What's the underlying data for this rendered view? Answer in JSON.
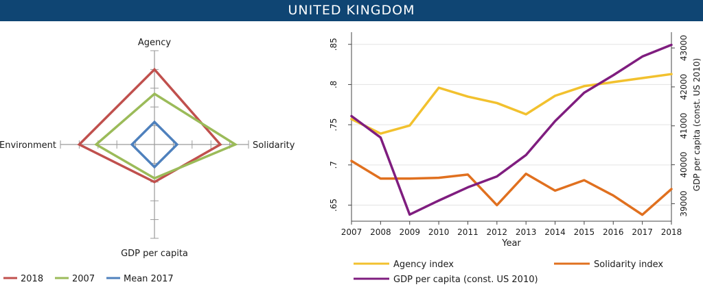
{
  "header": {
    "title": "UNITED KINGDOM"
  },
  "chart_data": [
    {
      "type": "radar",
      "axes": [
        "Agency",
        "Solidarity",
        "GDP per capita",
        "Environment"
      ],
      "axis_max": 5,
      "legend_position": "bottom",
      "series": [
        {
          "name": "2018",
          "color": "#c0504d",
          "values": [
            4,
            3.5,
            2,
            4
          ]
        },
        {
          "name": "2007",
          "color": "#9bbb59",
          "values": [
            2.7,
            4.3,
            1.8,
            3.1
          ]
        },
        {
          "name": "Mean 2017",
          "color": "#4f81bd",
          "values": [
            1.2,
            1.2,
            1.2,
            1.2
          ]
        }
      ]
    },
    {
      "type": "line",
      "x": [
        2007,
        2008,
        2009,
        2010,
        2011,
        2012,
        2013,
        2014,
        2015,
        2016,
        2017,
        2018
      ],
      "xlabel": "Year",
      "xticks": [
        "2007",
        "2008",
        "2009",
        "2010",
        "2011",
        "2012",
        "2013",
        "2014",
        "2015",
        "2016",
        "2017",
        "2018"
      ],
      "ylim": [
        0.63,
        0.86
      ],
      "yticks": [
        ".65",
        ".7",
        ".75",
        ".8",
        ".85"
      ],
      "y2label": "GDP per capita (const. US 2010)",
      "y2lim": [
        38550,
        43300
      ],
      "y2ticks": [
        "39000",
        "40000",
        "41000",
        "42000",
        "43000"
      ],
      "grid": true,
      "legend_position": "bottom",
      "series": [
        {
          "name": "Agency index",
          "axis": "left",
          "color": "#f2c12e",
          "values": [
            0.757,
            0.739,
            0.749,
            0.796,
            0.785,
            0.777,
            0.763,
            0.786,
            0.798,
            0.803,
            0.808,
            0.813
          ]
        },
        {
          "name": "Solidarity index",
          "axis": "left",
          "color": "#e0701f",
          "values": [
            0.705,
            0.683,
            0.683,
            0.684,
            0.688,
            0.65,
            0.689,
            0.668,
            0.681,
            0.662,
            0.638,
            0.67
          ]
        },
        {
          "name": "GDP per capita (const. US 2010)",
          "axis": "right",
          "color": "#7f1d7f",
          "values": [
            41250,
            40700,
            38720,
            39080,
            39420,
            39700,
            40250,
            41120,
            41850,
            42300,
            42780,
            43080
          ]
        }
      ]
    }
  ]
}
